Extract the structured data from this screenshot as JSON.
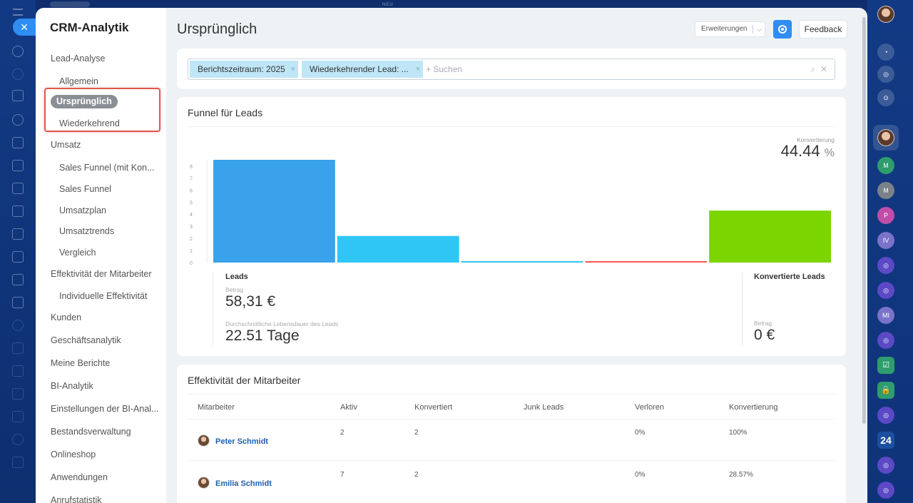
{
  "topbar": {
    "new_label": "NEU"
  },
  "menu": {
    "title": "CRM-Analytik",
    "items": [
      {
        "label": "Lead-Analyse",
        "level": 0
      },
      {
        "label": "Allgemein",
        "level": 1
      },
      {
        "label": "Ursprünglich",
        "level": 1,
        "active": true
      },
      {
        "label": "Wiederkehrend",
        "level": 1
      },
      {
        "label": "Umsatz",
        "level": 0
      },
      {
        "label": "Sales Funnel (mit Kon...",
        "level": 1
      },
      {
        "label": "Sales Funnel",
        "level": 1
      },
      {
        "label": "Umsatzplan",
        "level": 1
      },
      {
        "label": "Umsatztrends",
        "level": 1
      },
      {
        "label": "Vergleich",
        "level": 1
      },
      {
        "label": "Effektivität der Mitarbeiter",
        "level": 0
      },
      {
        "label": "Individuelle Effektivität",
        "level": 1
      },
      {
        "label": "Kunden",
        "level": 0
      },
      {
        "label": "Geschäftsanalytik",
        "level": 0
      },
      {
        "label": "Meine Berichte",
        "level": 0
      },
      {
        "label": "BI-Analytik",
        "level": 0
      },
      {
        "label": "Einstellungen der BI-Anal...",
        "level": 0
      },
      {
        "label": "Bestandsverwaltung",
        "level": 0
      },
      {
        "label": "Onlineshop",
        "level": 0
      },
      {
        "label": "Anwendungen",
        "level": 0
      },
      {
        "label": "Anrufstatistik",
        "level": 0
      }
    ]
  },
  "header": {
    "title": "Ursprünglich",
    "extensions_label": "Erweiterungen",
    "feedback_label": "Feedback"
  },
  "filter": {
    "chips": [
      "Berichtszeitraum: 2025",
      "Wiederkehrender Lead: ..."
    ],
    "search_placeholder": "+ Suchen"
  },
  "funnel": {
    "title": "Funnel für Leads",
    "conversion_label": "Konvertierung",
    "conversion_value": "44.44",
    "conversion_unit": "%",
    "leads_label": "Leads",
    "amount_label": "Betrag",
    "amount_value": "58,31 €",
    "lifetime_label": "Durchschnittliche Lebensdauer des Leads",
    "lifetime_value": "22.51 Tage",
    "converted_label": "Konvertierte Leads",
    "converted_amount_label": "Betrag",
    "converted_amount_value": "0 €"
  },
  "chart_data": {
    "type": "bar",
    "title": "Funnel für Leads",
    "yticks": [
      0,
      1,
      2,
      3,
      4,
      5,
      6,
      7,
      8
    ],
    "ylim": [
      0,
      8.5
    ],
    "values": [
      8.5,
      2.2,
      0.1,
      0.1,
      4.3
    ],
    "colors": [
      "#3aa2ea",
      "#2fc6f6",
      "#2fc6f6",
      "#ff5752",
      "#7bd500"
    ],
    "categories": [
      "Leads",
      "",
      "",
      "",
      "Konvertierte Leads"
    ]
  },
  "employees": {
    "title": "Effektivität der Mitarbeiter",
    "columns": [
      "Mitarbeiter",
      "Aktiv",
      "Konvertiert",
      "Junk Leads",
      "Verloren",
      "Konvertierung"
    ],
    "rows": [
      {
        "name": "Peter Schmidt",
        "active": "2",
        "converted": "2",
        "junk": "",
        "lost": "0%",
        "conversion": "100%"
      },
      {
        "name": "Emilia Schmidt",
        "active": "7",
        "converted": "2",
        "junk": "",
        "lost": "0%",
        "conversion": "28.57%"
      }
    ]
  },
  "right_rail": {
    "initials": [
      "M",
      "M",
      "P",
      "IV",
      "MI"
    ],
    "badge_24": "24"
  },
  "colors": {
    "accent": "#2f8df3",
    "chip": "#bfe6f7",
    "highlight": "#e0574a",
    "link": "#1f5fb0"
  }
}
